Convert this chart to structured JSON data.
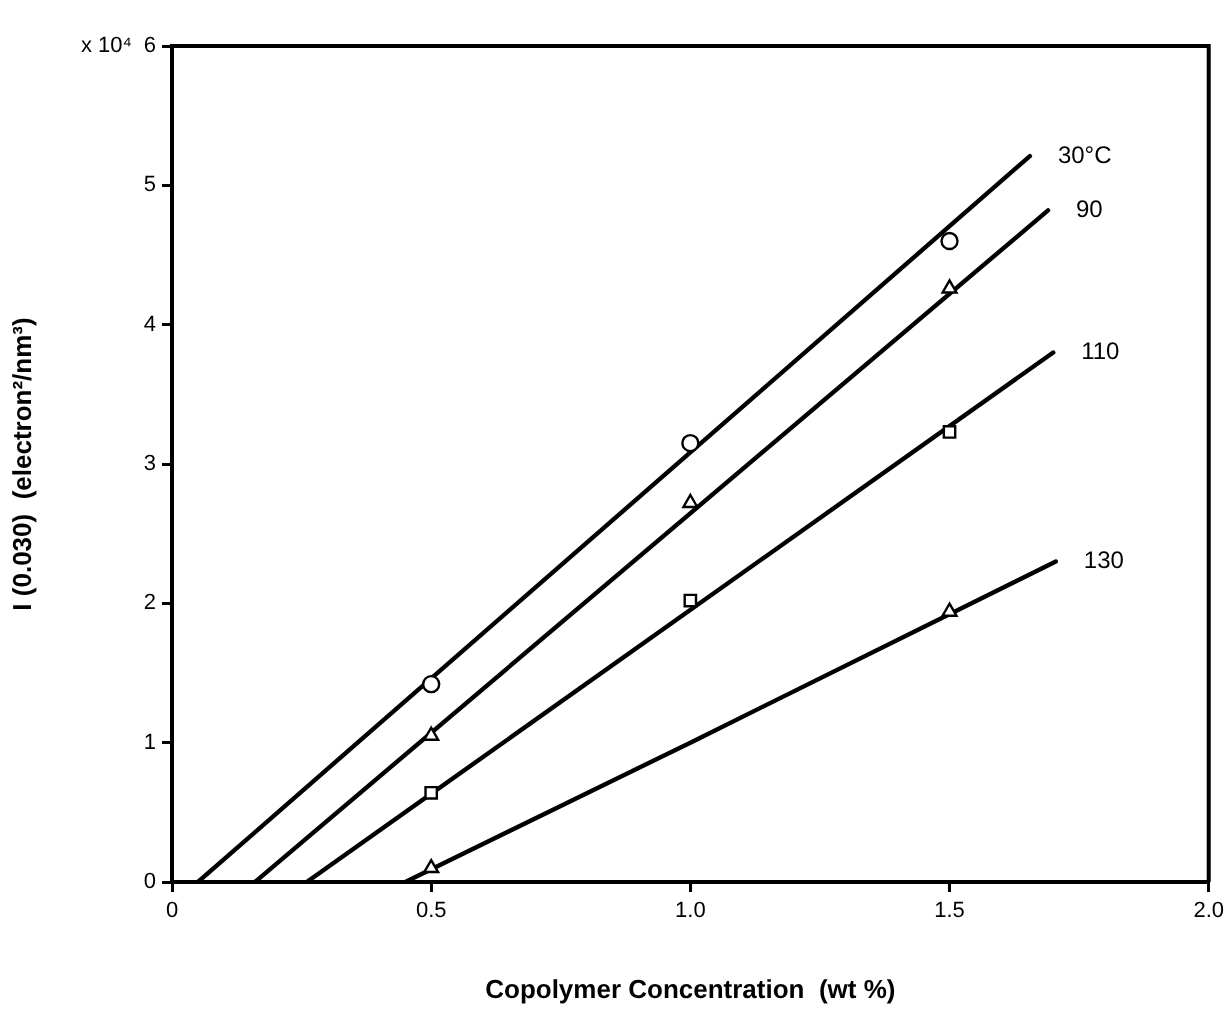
{
  "chart_data": {
    "type": "scatter",
    "xlabel": "Copolymer Concentration  (wt %)",
    "ylabel": "I (0.030)  (electron²/nm³)",
    "xlim": [
      0,
      2.0
    ],
    "xticks": [
      0,
      0.5,
      {
        "value": 1.0,
        "label": "1.0"
      },
      1.5,
      {
        "value": 2.0,
        "label": "2.0"
      }
    ],
    "ylim": [
      0,
      6
    ],
    "yticks": [
      0,
      1,
      2,
      3,
      4,
      5,
      6
    ],
    "annotations": [
      "x 10⁴"
    ],
    "grid": false,
    "legend": false,
    "series": [
      {
        "color": "#000000",
        "marker": "circle",
        "x": [
          0.5,
          1.0,
          1.5
        ],
        "values": [
          1.42,
          3.15,
          4.6
        ]
      },
      {
        "color": "#000000",
        "marker": "triangle",
        "x": [
          0.5,
          1.0,
          1.5
        ],
        "values": [
          1.05,
          2.72,
          4.26
        ]
      },
      {
        "color": "#000000",
        "marker": "square",
        "x": [
          0.5,
          1.0,
          1.5
        ],
        "values": [
          0.64,
          2.02,
          3.23
        ]
      },
      {
        "color": "#000000",
        "marker": "triangle",
        "x": [
          0.5,
          1.5
        ],
        "values": [
          0.1,
          1.94
        ]
      },
      {
        "type": "line",
        "name": "30°C",
        "color": "#000000",
        "marker": "none",
        "x": [
          0.05,
          1.655
        ],
        "values": [
          0,
          5.21
        ]
      },
      {
        "type": "line",
        "name": "90",
        "color": "#000000",
        "marker": "none",
        "x": [
          0.16,
          1.69
        ],
        "values": [
          0,
          4.82
        ]
      },
      {
        "type": "line",
        "name": "110",
        "color": "#000000",
        "marker": "none",
        "x": [
          0.26,
          1.7
        ],
        "values": [
          0,
          3.8
        ]
      },
      {
        "type": "line",
        "name": "130",
        "color": "#000000",
        "marker": "none",
        "x": [
          0.45,
          1.0,
          1.705
        ],
        "values": [
          0,
          1.0,
          2.3
        ]
      }
    ]
  }
}
